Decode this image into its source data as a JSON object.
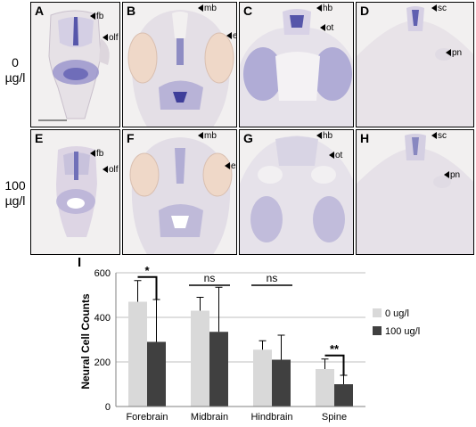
{
  "row_labels": {
    "top": {
      "line1": "0",
      "line2": "µg/l"
    },
    "bottom": {
      "line1": "100",
      "line2": "µg/l"
    }
  },
  "panels": [
    {
      "id": "A",
      "annotations": [
        "fb",
        "olf"
      ]
    },
    {
      "id": "B",
      "annotations": [
        "mb",
        "e"
      ]
    },
    {
      "id": "C",
      "annotations": [
        "hb",
        "ot"
      ]
    },
    {
      "id": "D",
      "annotations": [
        "sc",
        "pn"
      ]
    },
    {
      "id": "E",
      "annotations": [
        "fb",
        "olf"
      ]
    },
    {
      "id": "F",
      "annotations": [
        "mb",
        "e"
      ]
    },
    {
      "id": "G",
      "annotations": [
        "hb",
        "ot"
      ]
    },
    {
      "id": "H",
      "annotations": [
        "sc",
        "pn"
      ]
    }
  ],
  "colors": {
    "series_0": "#d9d9d9",
    "series_1": "#404040",
    "stain_dark": "#4a4aa8",
    "stain_light": "#c9c6dd",
    "gridline": "#bfbfbf"
  },
  "chart_data": {
    "type": "bar",
    "panel_letter": "I",
    "title": "",
    "xlabel": "",
    "ylabel": "Neural Cell Counts",
    "ylim": [
      0,
      600
    ],
    "yticks": [
      0,
      200,
      400,
      600
    ],
    "grid": true,
    "legend_position": "right",
    "categories": [
      "Forebrain",
      "Midbrain",
      "Hindbrain",
      "Spine"
    ],
    "series": [
      {
        "name": "0 ug/l",
        "values": [
          470,
          430,
          255,
          168
        ],
        "errors": [
          95,
          60,
          40,
          45
        ]
      },
      {
        "name": "100 ug/l",
        "values": [
          290,
          335,
          210,
          100
        ],
        "errors": [
          190,
          200,
          110,
          40
        ]
      }
    ],
    "significance": [
      {
        "category": "Forebrain",
        "label": "*",
        "bracket": true
      },
      {
        "category": "Midbrain",
        "label": "ns",
        "bracket": false
      },
      {
        "category": "Hindbrain",
        "label": "ns",
        "bracket": false
      },
      {
        "category": "Spine",
        "label": "**",
        "bracket": true
      }
    ]
  }
}
